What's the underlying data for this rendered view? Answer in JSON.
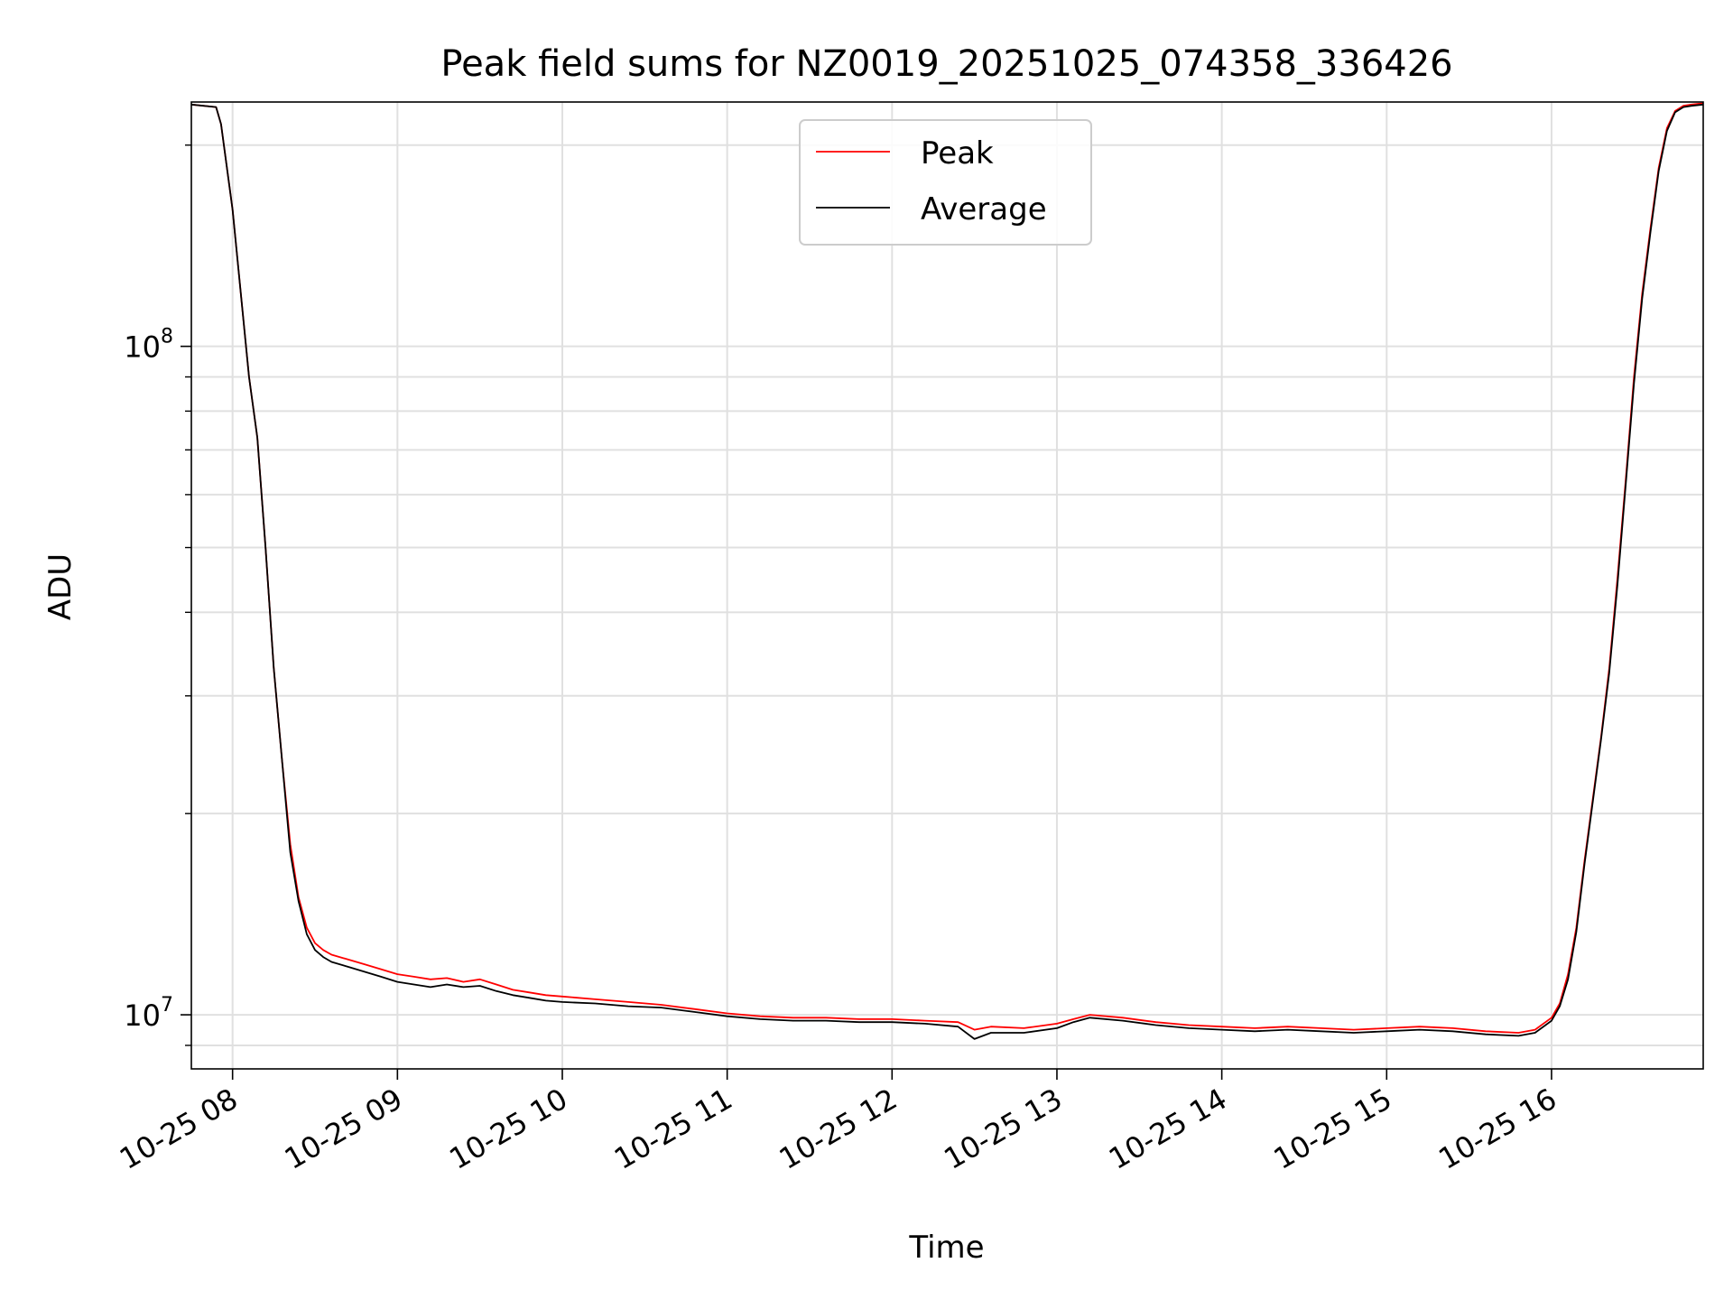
{
  "chart_data": {
    "type": "line",
    "title": "Peak field sums for NZ0019_20251025_074358_336426",
    "xlabel": "Time",
    "ylabel": "ADU",
    "yscale": "log",
    "ylim": [
      8300000,
      232000000
    ],
    "xlim": [
      7.75,
      16.92
    ],
    "grid": true,
    "legend_position": "upper center",
    "x_ticks": [
      {
        "value": 8,
        "label": "10-25 08"
      },
      {
        "value": 9,
        "label": "10-25 09"
      },
      {
        "value": 10,
        "label": "10-25 10"
      },
      {
        "value": 11,
        "label": "10-25 11"
      },
      {
        "value": 12,
        "label": "10-25 12"
      },
      {
        "value": 13,
        "label": "10-25 13"
      },
      {
        "value": 14,
        "label": "10-25 14"
      },
      {
        "value": 15,
        "label": "10-25 15"
      },
      {
        "value": 16,
        "label": "10-25 16"
      }
    ],
    "y_major_ticks": [
      {
        "value": 10000000,
        "base": "10",
        "exp": "7"
      },
      {
        "value": 100000000,
        "base": "10",
        "exp": "8"
      }
    ],
    "y_minor_ticks": [
      9000000,
      20000000,
      30000000,
      40000000,
      50000000,
      60000000,
      70000000,
      80000000,
      90000000,
      200000000
    ],
    "series": [
      {
        "name": "Peak",
        "color": "#ff0000",
        "x": [
          7.75,
          7.9,
          7.93,
          8.0,
          8.05,
          8.1,
          8.15,
          8.2,
          8.25,
          8.3,
          8.35,
          8.4,
          8.45,
          8.5,
          8.55,
          8.6,
          8.7,
          8.8,
          8.9,
          9.0,
          9.1,
          9.2,
          9.3,
          9.4,
          9.5,
          9.6,
          9.7,
          9.8,
          9.9,
          10.0,
          10.2,
          10.4,
          10.6,
          10.8,
          11.0,
          11.2,
          11.4,
          11.6,
          11.8,
          12.0,
          12.2,
          12.4,
          12.5,
          12.6,
          12.8,
          13.0,
          13.1,
          13.2,
          13.4,
          13.6,
          13.8,
          14.0,
          14.2,
          14.4,
          14.6,
          14.8,
          15.0,
          15.2,
          15.4,
          15.6,
          15.8,
          15.9,
          16.0,
          16.05,
          16.1,
          16.15,
          16.2,
          16.25,
          16.3,
          16.35,
          16.4,
          16.45,
          16.5,
          16.55,
          16.6,
          16.65,
          16.7,
          16.75,
          16.8,
          16.85,
          16.92
        ],
        "y": [
          230000000,
          228000000,
          215000000,
          160000000,
          120000000,
          90000000,
          73000000,
          50000000,
          33000000,
          24000000,
          18000000,
          15000000,
          13500000,
          12800000,
          12500000,
          12300000,
          12100000,
          11900000,
          11700000,
          11500000,
          11400000,
          11300000,
          11350000,
          11200000,
          11300000,
          11100000,
          10900000,
          10800000,
          10700000,
          10650000,
          10550000,
          10450000,
          10350000,
          10200000,
          10050000,
          9950000,
          9900000,
          9900000,
          9850000,
          9850000,
          9800000,
          9750000,
          9500000,
          9600000,
          9550000,
          9700000,
          9850000,
          10000000,
          9900000,
          9750000,
          9650000,
          9600000,
          9550000,
          9600000,
          9550000,
          9500000,
          9550000,
          9600000,
          9550000,
          9450000,
          9400000,
          9500000,
          9900000,
          10400000,
          11500000,
          13500000,
          17000000,
          21000000,
          26000000,
          33000000,
          45000000,
          63000000,
          90000000,
          120000000,
          150000000,
          185000000,
          212000000,
          225000000,
          229000000,
          230000000,
          231000000
        ]
      },
      {
        "name": "Average",
        "color": "#000000",
        "x": [
          7.75,
          7.9,
          7.93,
          8.0,
          8.05,
          8.1,
          8.15,
          8.2,
          8.25,
          8.3,
          8.35,
          8.4,
          8.45,
          8.5,
          8.55,
          8.6,
          8.7,
          8.8,
          8.9,
          9.0,
          9.1,
          9.2,
          9.3,
          9.4,
          9.5,
          9.6,
          9.7,
          9.8,
          9.9,
          10.0,
          10.2,
          10.4,
          10.6,
          10.8,
          11.0,
          11.2,
          11.4,
          11.6,
          11.8,
          12.0,
          12.2,
          12.4,
          12.5,
          12.6,
          12.8,
          13.0,
          13.1,
          13.2,
          13.4,
          13.6,
          13.8,
          14.0,
          14.2,
          14.4,
          14.6,
          14.8,
          15.0,
          15.2,
          15.4,
          15.6,
          15.8,
          15.9,
          16.0,
          16.05,
          16.1,
          16.15,
          16.2,
          16.25,
          16.3,
          16.35,
          16.4,
          16.45,
          16.5,
          16.55,
          16.6,
          16.65,
          16.7,
          16.75,
          16.8,
          16.85,
          16.92
        ],
        "y": [
          230000000,
          228000000,
          215000000,
          160000000,
          120000000,
          90000000,
          73000000,
          50000000,
          33000000,
          24000000,
          17500000,
          14800000,
          13200000,
          12500000,
          12200000,
          12000000,
          11800000,
          11600000,
          11400000,
          11200000,
          11100000,
          11000000,
          11100000,
          11000000,
          11050000,
          10850000,
          10700000,
          10600000,
          10500000,
          10450000,
          10400000,
          10300000,
          10250000,
          10100000,
          9950000,
          9850000,
          9800000,
          9800000,
          9750000,
          9750000,
          9700000,
          9600000,
          9200000,
          9400000,
          9400000,
          9550000,
          9750000,
          9900000,
          9800000,
          9650000,
          9550000,
          9500000,
          9450000,
          9500000,
          9450000,
          9400000,
          9450000,
          9500000,
          9450000,
          9350000,
          9300000,
          9400000,
          9800000,
          10300000,
          11300000,
          13300000,
          16800000,
          20800000,
          25800000,
          32500000,
          44000000,
          62000000,
          88000000,
          118000000,
          148000000,
          183000000,
          210000000,
          224000000,
          228000000,
          229000000,
          230000000
        ]
      }
    ]
  }
}
